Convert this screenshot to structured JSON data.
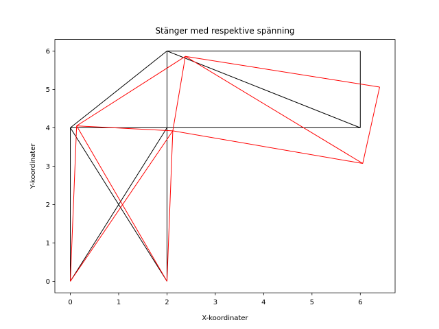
{
  "chart_data": {
    "type": "line",
    "title": "Stänger med respektive spänning",
    "xlabel": "X-koordinater",
    "ylabel": "Y-koordinater",
    "xlim": [
      -0.32,
      6.72
    ],
    "ylim": [
      -0.3,
      6.3
    ],
    "xticks": [
      0,
      1,
      2,
      3,
      4,
      5,
      6
    ],
    "yticks": [
      0,
      1,
      2,
      3,
      4,
      5,
      6
    ],
    "grid": false,
    "series": [
      {
        "color": "#000000",
        "segments": [
          [
            [
              0,
              0
            ],
            [
              0,
              4
            ]
          ],
          [
            [
              0,
              0
            ],
            [
              2,
              4
            ]
          ],
          [
            [
              2,
              0
            ],
            [
              0,
              4
            ]
          ],
          [
            [
              2,
              0
            ],
            [
              2,
              4
            ]
          ],
          [
            [
              0,
              4
            ],
            [
              2,
              4
            ]
          ],
          [
            [
              0,
              4
            ],
            [
              2,
              6
            ]
          ],
          [
            [
              2,
              4
            ],
            [
              2,
              6
            ]
          ],
          [
            [
              2,
              4
            ],
            [
              6,
              4
            ]
          ],
          [
            [
              2,
              6
            ],
            [
              6,
              6
            ]
          ],
          [
            [
              2,
              6
            ],
            [
              6,
              4
            ]
          ],
          [
            [
              6,
              6
            ],
            [
              6,
              4
            ]
          ]
        ]
      },
      {
        "color": "#ff0000",
        "segments": [
          [
            [
              0,
              0
            ],
            [
              0.13,
              4.05
            ]
          ],
          [
            [
              0,
              0
            ],
            [
              2.12,
              3.92
            ]
          ],
          [
            [
              2,
              0
            ],
            [
              0.13,
              4.05
            ]
          ],
          [
            [
              2,
              0
            ],
            [
              2.12,
              3.92
            ]
          ],
          [
            [
              0.13,
              4.05
            ],
            [
              2.12,
              3.92
            ]
          ],
          [
            [
              0.13,
              4.05
            ],
            [
              2.38,
              5.86
            ]
          ],
          [
            [
              2.12,
              3.92
            ],
            [
              2.38,
              5.86
            ]
          ],
          [
            [
              2.12,
              3.92
            ],
            [
              6.05,
              3.07
            ]
          ],
          [
            [
              2.38,
              5.86
            ],
            [
              6.4,
              5.06
            ]
          ],
          [
            [
              2.38,
              5.86
            ],
            [
              6.05,
              3.07
            ]
          ],
          [
            [
              6.4,
              5.06
            ],
            [
              6.05,
              3.07
            ]
          ]
        ]
      }
    ]
  }
}
